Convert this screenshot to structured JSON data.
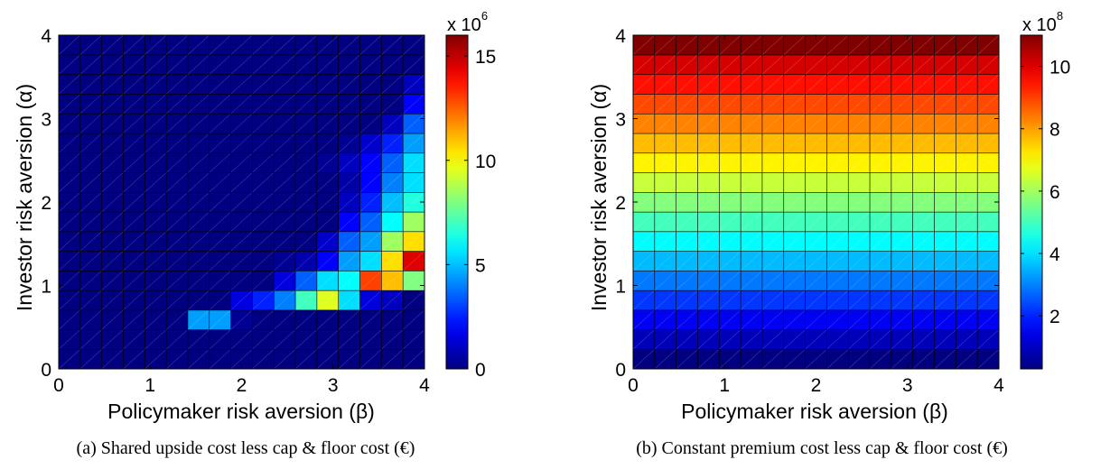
{
  "panels": [
    {
      "chart_data": {
        "type": "heatmap",
        "xlabel": "Policymaker risk aversion (β)",
        "ylabel": "Investor risk aversion (α)",
        "xlim": [
          0,
          4
        ],
        "ylim": [
          0,
          4
        ],
        "xticks": [
          "0",
          "1",
          "2",
          "3",
          "4"
        ],
        "yticks": [
          "0",
          "1",
          "2",
          "3",
          "4"
        ],
        "grid_size": 17,
        "cell_step": 0.25,
        "colormap": "jet",
        "clim": [
          0,
          16
        ],
        "colorbar_ticks": [
          "0",
          "5",
          "10",
          "15"
        ],
        "colorbar_tick_values": [
          0,
          5,
          10,
          15
        ],
        "colorbar_multiplier_base": "x 10",
        "colorbar_multiplier_exp": "6",
        "caption": "(a) Shared upside cost less cap & floor cost (€)",
        "values": [
          [
            0,
            0,
            0,
            0,
            0,
            0,
            0,
            0,
            0,
            0,
            0,
            0,
            0,
            0,
            0,
            0,
            0
          ],
          [
            0,
            0,
            0,
            0,
            0,
            0,
            0,
            0,
            0,
            0,
            0,
            0,
            0,
            0,
            0,
            0,
            0
          ],
          [
            0,
            0,
            0,
            0,
            0,
            0,
            4.5,
            4.5,
            0.3,
            0,
            0,
            0,
            0,
            0,
            0,
            0,
            0
          ],
          [
            0,
            0,
            0,
            0,
            0,
            0,
            0,
            0,
            1.5,
            2.5,
            4,
            7,
            9.5,
            5.5,
            1.5,
            1,
            0
          ],
          [
            0,
            0,
            0,
            0,
            0,
            0,
            0,
            0,
            0,
            0,
            1.5,
            3.5,
            5.5,
            6,
            13,
            11,
            8
          ],
          [
            0,
            0,
            0,
            0,
            0,
            0,
            0,
            0,
            0,
            0,
            0.3,
            0.7,
            2,
            4.5,
            5.5,
            10.5,
            14.5
          ],
          [
            0,
            0,
            0,
            0,
            0,
            0,
            0,
            0,
            0,
            0,
            0,
            0,
            1.2,
            3.5,
            4.5,
            8.5,
            10.5
          ],
          [
            0,
            0,
            0,
            0,
            0,
            0,
            0,
            0,
            0,
            0,
            0,
            0,
            0,
            2,
            3.5,
            6,
            8.5
          ],
          [
            0,
            0,
            0,
            0,
            0,
            0,
            0,
            0,
            0,
            0,
            0,
            0,
            0,
            1,
            2.5,
            5,
            6.5
          ],
          [
            0,
            0,
            0,
            0,
            0,
            0,
            0,
            0,
            0,
            0,
            0,
            0,
            0,
            0.6,
            2,
            4,
            5.5
          ],
          [
            0,
            0,
            0,
            0,
            0,
            0,
            0,
            0,
            0,
            0,
            0,
            0,
            0.3,
            1,
            2,
            3.5,
            5.5
          ],
          [
            0,
            0,
            0,
            0,
            0,
            0,
            0,
            0,
            0,
            0,
            0,
            0,
            0,
            0.3,
            1.2,
            2.5,
            4.5
          ],
          [
            0,
            0,
            0,
            0,
            0,
            0,
            0,
            0,
            0,
            0,
            0,
            0,
            0,
            0,
            0,
            1,
            3.5
          ],
          [
            0,
            0,
            0,
            0,
            0,
            0,
            0,
            0,
            0,
            0,
            0,
            0,
            0,
            0,
            0,
            0,
            2
          ],
          [
            0,
            0,
            0,
            0,
            0,
            0,
            0,
            0,
            0,
            0,
            0,
            0,
            0,
            0,
            0,
            0,
            1
          ],
          [
            0,
            0,
            0,
            0,
            0,
            0,
            0,
            0,
            0,
            0,
            0,
            0,
            0,
            0,
            0,
            0,
            0
          ],
          [
            0,
            0,
            0,
            0,
            0,
            0,
            0,
            0,
            0,
            0,
            0,
            0,
            0,
            0,
            0,
            0,
            0
          ]
        ]
      }
    },
    {
      "chart_data": {
        "type": "heatmap",
        "xlabel": "Policymaker risk aversion (β)",
        "ylabel": "Investor risk aversion (α)",
        "xlim": [
          0,
          4
        ],
        "ylim": [
          0,
          4
        ],
        "xticks": [
          "0",
          "1",
          "2",
          "3",
          "4"
        ],
        "yticks": [
          "0",
          "1",
          "2",
          "3",
          "4"
        ],
        "grid_size": 17,
        "cell_step": 0.25,
        "colormap": "jet",
        "clim": [
          0.3,
          11
        ],
        "colorbar_ticks": [
          "2",
          "4",
          "6",
          "8",
          "10"
        ],
        "colorbar_tick_values": [
          2,
          4,
          6,
          8,
          10
        ],
        "colorbar_multiplier_base": "x 10",
        "colorbar_multiplier_exp": "8",
        "caption": "(b) Constant premium cost less cap & floor cost (€)",
        "row_values": [
          0.3,
          0.9,
          1.5,
          2.2,
          2.9,
          3.6,
          4.3,
          5.0,
          5.7,
          6.4,
          7.1,
          7.7,
          8.3,
          8.9,
          9.5,
          10.1,
          11.0
        ]
      }
    }
  ]
}
